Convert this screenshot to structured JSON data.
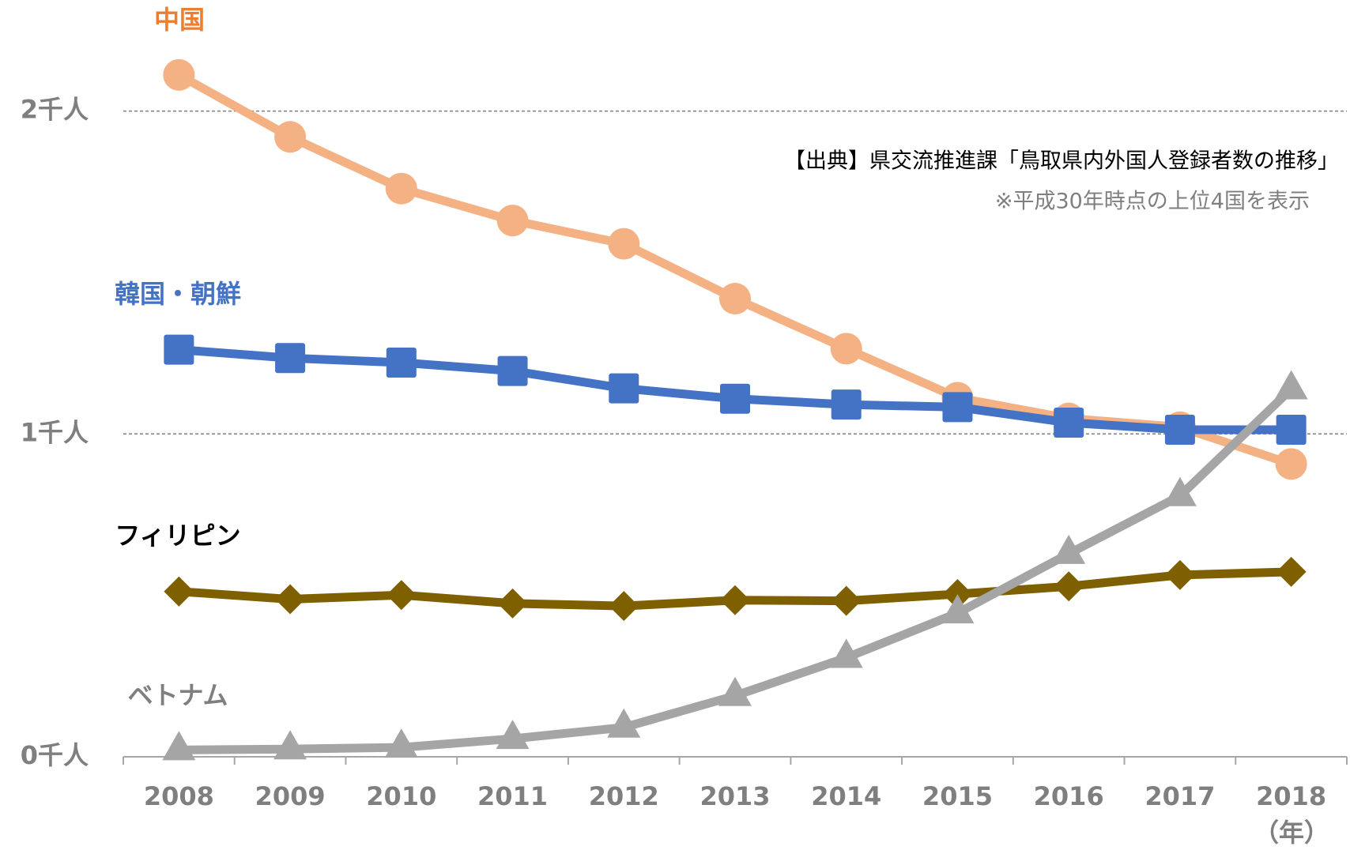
{
  "chart_data": {
    "type": "line",
    "categories": [
      "2008",
      "2009",
      "2010",
      "2011",
      "2012",
      "2013",
      "2014",
      "2015",
      "2016",
      "2017",
      "2018"
    ],
    "x_label": "（年）",
    "series": [
      {
        "name": "中国",
        "color": "#F4B183",
        "label_color": "#ED7D31",
        "marker": "circle",
        "values": [
          2112,
          1920,
          1760,
          1661,
          1589,
          1419,
          1264,
          1112,
          1048,
          1021,
          907
        ]
      },
      {
        "name": "韓国・朝鮮",
        "color": "#4472C4",
        "label_color": "#4472C4",
        "marker": "square",
        "values": [
          1261,
          1235,
          1221,
          1195,
          1141,
          1109,
          1091,
          1083,
          1035,
          1013,
          1013
        ]
      },
      {
        "name": "フィリピン",
        "color": "#7F6000",
        "label_color": "#000000",
        "marker": "diamond",
        "values": [
          512,
          488,
          501,
          475,
          467,
          485,
          483,
          504,
          528,
          563,
          573
        ]
      },
      {
        "name": "ベトナム",
        "color": "#A5A5A5",
        "label_color": "#7F7F7F",
        "marker": "triangle",
        "values": [
          21,
          24,
          29,
          56,
          91,
          189,
          307,
          445,
          629,
          808,
          1139
        ]
      }
    ],
    "ylim": [
      0,
      2300
    ],
    "yticks": [
      {
        "value": 0,
        "label": "0千人"
      },
      {
        "value": 1000,
        "label": "1千人"
      },
      {
        "value": 2000,
        "label": "2千人"
      }
    ],
    "grid": true,
    "annotations": [
      "【出典】県交流推進課「鳥取県内外国人登録者数の推移」",
      "※平成30年時点の上位4国を表示"
    ]
  }
}
